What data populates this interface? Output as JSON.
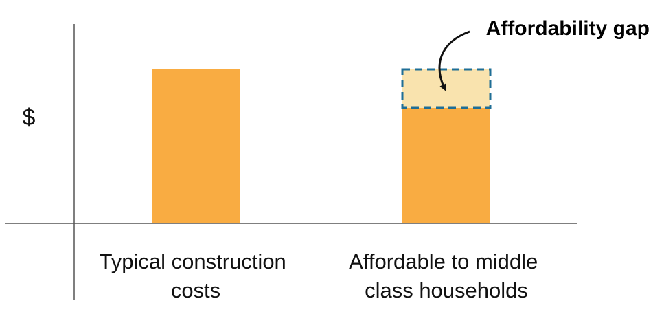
{
  "chart_data": {
    "type": "bar",
    "title": "",
    "xlabel": "",
    "ylabel": "$",
    "categories": [
      [
        "Typical construction",
        "costs"
      ],
      [
        "Affordable to middle",
        "class households"
      ]
    ],
    "values": [
      1.0,
      0.75
    ],
    "gap": {
      "category_index": 1,
      "from": 0.75,
      "to": 1.0,
      "label": "Affordability gap"
    },
    "ylim": [
      0,
      1.0
    ],
    "grid": false,
    "legend": "none",
    "colors": {
      "bar": "#F9AC42",
      "gap_fill": "#F9E3AE",
      "gap_border": "#1F6E96",
      "axis": "#555555",
      "arrow": "#111111"
    }
  }
}
